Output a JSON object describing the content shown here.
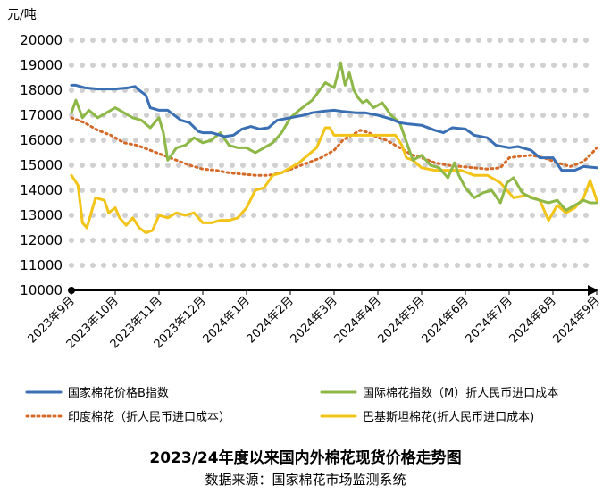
{
  "chart_data": {
    "type": "line",
    "title": "2023/24年度以来国内外棉花现货价格走势图",
    "source": "数据来源：国家棉花市场监测系统",
    "y_unit": "元/吨",
    "ylim": [
      10000,
      20000
    ],
    "y_ticks": [
      "10000",
      "11000",
      "12000",
      "13000",
      "14000",
      "15000",
      "16000",
      "17000",
      "18000",
      "19000",
      "20000"
    ],
    "x_ticks": [
      "2023年9月",
      "2023年10月",
      "2023年11月",
      "2023年12月",
      "2024年1月",
      "2024年2月",
      "2024年3月",
      "2024年4月",
      "2024年5月",
      "2024年6月",
      "2024年7月",
      "2024年8月",
      "2024年9月"
    ],
    "x_range": [
      0,
      12
    ],
    "legend_position": "bottom",
    "colors": {
      "b_index": "#3A6FB3",
      "m_index": "#8DB847",
      "india": "#D56A28",
      "pakistan": "#F2C418"
    },
    "series": [
      {
        "key": "b_index",
        "name": "国家棉花价格B指数",
        "style": "solid",
        "x": [
          0,
          0.1,
          0.3,
          0.6,
          1.0,
          1.3,
          1.45,
          1.55,
          1.7,
          1.8,
          2.0,
          2.2,
          2.5,
          2.7,
          2.9,
          3.0,
          3.2,
          3.5,
          3.7,
          3.9,
          4.1,
          4.3,
          4.5,
          4.7,
          5.0,
          5.3,
          5.5,
          5.7,
          6.0,
          6.2,
          6.5,
          6.7,
          7.0,
          7.3,
          7.5,
          7.7,
          8.0,
          8.3,
          8.5,
          8.7,
          9.0,
          9.2,
          9.5,
          9.7,
          10.0,
          10.2,
          10.5,
          10.7,
          11.0,
          11.2,
          11.5,
          11.7,
          12.0
        ],
        "y": [
          18200,
          18200,
          18100,
          18050,
          18050,
          18100,
          18150,
          18000,
          17800,
          17300,
          17200,
          17200,
          16800,
          16700,
          16350,
          16300,
          16300,
          16150,
          16200,
          16450,
          16550,
          16450,
          16500,
          16800,
          16900,
          17000,
          17100,
          17150,
          17200,
          17150,
          17100,
          17100,
          17000,
          16850,
          16700,
          16650,
          16600,
          16400,
          16300,
          16500,
          16450,
          16200,
          16100,
          15800,
          15700,
          15750,
          15600,
          15300,
          15300,
          14800,
          14800,
          14950,
          14900
        ]
      },
      {
        "key": "m_index",
        "name": "国际棉花指数（M）折人民币进口成本",
        "style": "solid",
        "x": [
          0,
          0.1,
          0.25,
          0.4,
          0.6,
          0.8,
          1.0,
          1.2,
          1.4,
          1.6,
          1.8,
          2.0,
          2.1,
          2.2,
          2.4,
          2.6,
          2.8,
          3.0,
          3.2,
          3.4,
          3.6,
          3.8,
          4.0,
          4.2,
          4.4,
          4.6,
          4.8,
          5.0,
          5.2,
          5.5,
          5.8,
          6.0,
          6.15,
          6.25,
          6.35,
          6.45,
          6.55,
          6.65,
          6.75,
          6.9,
          7.1,
          7.3,
          7.5,
          7.6,
          7.8,
          8.0,
          8.2,
          8.4,
          8.6,
          8.75,
          8.85,
          9.0,
          9.2,
          9.4,
          9.6,
          9.8,
          9.95,
          10.1,
          10.3,
          10.5,
          10.7,
          10.9,
          11.1,
          11.3,
          11.5,
          11.7,
          11.85,
          12.0
        ],
        "y": [
          17100,
          17600,
          16900,
          17200,
          16900,
          17100,
          17300,
          17100,
          16900,
          16800,
          16500,
          16900,
          16300,
          15200,
          15700,
          15800,
          16100,
          15900,
          16000,
          16300,
          15800,
          15700,
          15700,
          15500,
          15700,
          15900,
          16300,
          16900,
          17200,
          17600,
          18300,
          18100,
          19100,
          18200,
          18700,
          18000,
          17700,
          17500,
          17600,
          17300,
          17500,
          17000,
          16700,
          16200,
          15200,
          15400,
          15000,
          14900,
          14500,
          15100,
          14600,
          14100,
          13700,
          13900,
          14000,
          13500,
          14300,
          14500,
          13900,
          13700,
          13600,
          13500,
          13600,
          13200,
          13400,
          13600,
          13500,
          13500
        ]
      },
      {
        "key": "india",
        "name": "印度棉花（折人民币进口成本）",
        "style": "dotted",
        "x": [
          0,
          0.3,
          0.6,
          0.9,
          1.2,
          1.5,
          1.8,
          2.1,
          2.4,
          2.7,
          3.0,
          3.3,
          3.6,
          3.9,
          4.2,
          4.5,
          4.8,
          5.1,
          5.4,
          5.7,
          6.0,
          6.2,
          6.4,
          6.6,
          6.8,
          7.0,
          7.2,
          7.4,
          7.6,
          7.8,
          8.0,
          8.3,
          8.6,
          8.9,
          9.2,
          9.5,
          9.8,
          10.0,
          10.2,
          10.5,
          10.8,
          11.1,
          11.4,
          11.7,
          11.9,
          12.0
        ],
        "y": [
          16900,
          16700,
          16400,
          16200,
          15900,
          15800,
          15600,
          15400,
          15200,
          15000,
          14850,
          14800,
          14700,
          14650,
          14600,
          14600,
          14700,
          14900,
          15100,
          15300,
          15600,
          16000,
          16200,
          16400,
          16300,
          16100,
          16000,
          15800,
          15600,
          15400,
          15300,
          15100,
          15000,
          14950,
          14900,
          14850,
          14900,
          15300,
          15350,
          15400,
          15300,
          15100,
          14950,
          15150,
          15500,
          15700
        ]
      },
      {
        "key": "pakistan",
        "name": "巴基斯坦棉花(折人民币进口成本)",
        "style": "solid",
        "x": [
          0,
          0.15,
          0.25,
          0.35,
          0.55,
          0.75,
          0.85,
          1.0,
          1.1,
          1.25,
          1.4,
          1.55,
          1.7,
          1.85,
          2.0,
          2.2,
          2.4,
          2.6,
          2.8,
          3.0,
          3.2,
          3.4,
          3.6,
          3.8,
          4.0,
          4.2,
          4.4,
          4.6,
          4.8,
          5.0,
          5.2,
          5.4,
          5.6,
          5.8,
          5.9,
          6.0,
          6.2,
          6.5,
          6.8,
          7.1,
          7.4,
          7.55,
          7.65,
          7.8,
          8.0,
          8.3,
          8.6,
          8.9,
          9.2,
          9.5,
          9.8,
          10.1,
          10.4,
          10.7,
          10.9,
          11.1,
          11.3,
          11.5,
          11.7,
          11.85,
          12.0
        ],
        "y": [
          14600,
          14200,
          12700,
          12500,
          13700,
          13600,
          13100,
          13300,
          12900,
          12600,
          12900,
          12500,
          12300,
          12400,
          13000,
          12900,
          13100,
          13000,
          13100,
          12700,
          12700,
          12800,
          12800,
          12900,
          13300,
          14000,
          14100,
          14600,
          14700,
          14900,
          15100,
          15400,
          15700,
          16500,
          16500,
          16200,
          16200,
          16200,
          16200,
          16200,
          16200,
          15800,
          15300,
          15200,
          14900,
          14800,
          14800,
          14800,
          14600,
          14600,
          14300,
          13700,
          13800,
          13600,
          12800,
          13400,
          13100,
          13300,
          13700,
          14400,
          13600
        ]
      }
    ]
  }
}
